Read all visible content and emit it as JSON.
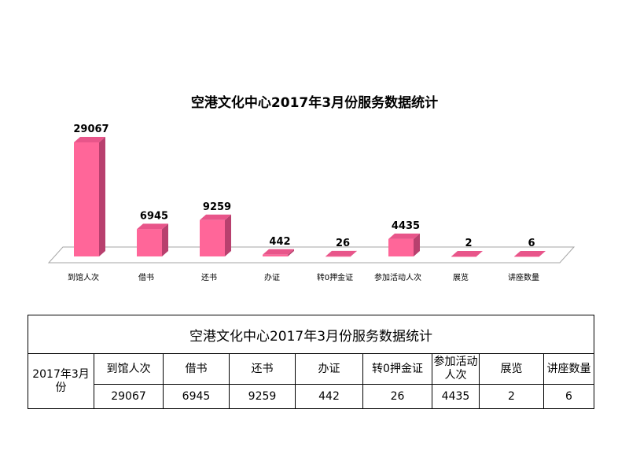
{
  "chart_data": {
    "type": "bar",
    "title": "空港文化中心2017年3月份服务数据统计",
    "categories": [
      "到馆人次",
      "借书",
      "还书",
      "办证",
      "转0押金证",
      "参加活动人次",
      "展览",
      "讲座数量"
    ],
    "values": [
      29067,
      6945,
      9259,
      442,
      26,
      4435,
      2,
      6
    ],
    "ylim": [
      0,
      29067
    ],
    "grid": false,
    "legend": "none",
    "bar_color": "#FF6699",
    "bar_side_color": "#B8406E",
    "bar_top_color": "#E8558A",
    "floor_color": "#FFFFFF"
  },
  "table": {
    "title": "空港文化中心2017年3月份服务数据统计",
    "period": "2017年3月份",
    "headers": [
      "到馆人次",
      "借书",
      "还书",
      "办证",
      "转0押金证",
      "参加活动人次",
      "展览",
      "讲座数量"
    ],
    "values": [
      "29067",
      "6945",
      "9259",
      "442",
      "26",
      "4435",
      "2",
      "6"
    ]
  }
}
